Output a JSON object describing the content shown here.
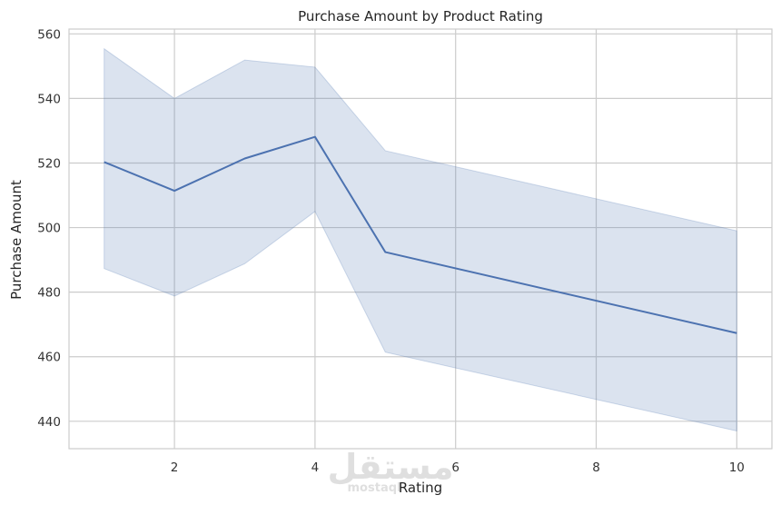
{
  "chart_data": {
    "type": "line",
    "title": "Purchase Amount by Product Rating",
    "xlabel": "Rating",
    "ylabel": "Purchase Amount",
    "xlim": [
      0.5,
      10.5
    ],
    "ylim": [
      431.5,
      561.5
    ],
    "x_ticks": [
      2,
      4,
      6,
      8,
      10
    ],
    "y_ticks": [
      440,
      460,
      480,
      500,
      520,
      540,
      560
    ],
    "grid": true,
    "series": [
      {
        "x": [
          1,
          2,
          3,
          4,
          5,
          10
        ],
        "values": [
          520.3,
          511.4,
          521.4,
          528.1,
          492.4,
          467.3
        ],
        "ci_upper": [
          555.4,
          540.0,
          551.9,
          549.7,
          523.8,
          499.0
        ],
        "ci_lower": [
          487.3,
          478.8,
          488.8,
          505.0,
          461.4,
          437.0
        ]
      }
    ],
    "colors": {
      "line": "#4c72b0",
      "band": "#4c72b0",
      "grid": "#cccccc",
      "spine": "#cccccc"
    }
  },
  "watermark": {
    "arabic": "مستقل",
    "latin": "mostaql"
  }
}
